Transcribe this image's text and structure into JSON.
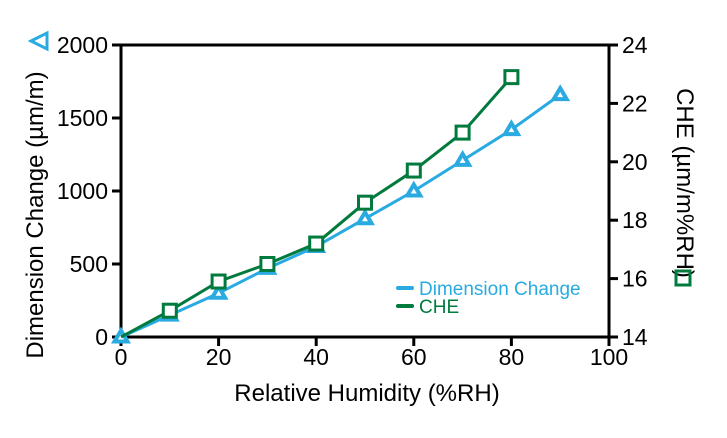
{
  "chart_data": {
    "type": "line",
    "title": "",
    "x_axis": {
      "label": "Relative Humidity (%RH)",
      "min": 0,
      "max": 100,
      "ticks": [
        0,
        20,
        40,
        60,
        80,
        100
      ]
    },
    "y_left": {
      "label": "Dimension Change (µm/m)",
      "min": 0,
      "max": 2000,
      "ticks": [
        0,
        500,
        1000,
        1500,
        2000
      ]
    },
    "y_right": {
      "label": "CHE (µm/m%RH)",
      "min": 14,
      "max": 24,
      "ticks": [
        14,
        16,
        18,
        20,
        22,
        24
      ]
    },
    "grid": "off",
    "frame": "full-box",
    "legend_position": "inside-bottom-right",
    "series": [
      {
        "name": "Dimension Change",
        "axis": "left",
        "color": "#29ABE2",
        "marker": "triangle",
        "skip_first_marker": false,
        "x": [
          0,
          10,
          20,
          30,
          40,
          50,
          60,
          70,
          80,
          90
        ],
        "values": [
          0,
          150,
          300,
          470,
          620,
          810,
          1000,
          1210,
          1420,
          1660
        ]
      },
      {
        "name": "CHE",
        "axis": "right",
        "color": "#007A3D",
        "marker": "square",
        "skip_first_marker": true,
        "x": [
          0,
          10,
          20,
          30,
          40,
          50,
          60,
          70,
          80
        ],
        "values": [
          14.0,
          14.9,
          15.9,
          16.5,
          17.2,
          18.6,
          19.7,
          21.0,
          22.9
        ]
      }
    ]
  },
  "icons": {
    "left_axis_marker": "open-triangle-icon",
    "right_axis_marker": "open-square-icon"
  },
  "colors": {
    "dimension_change": "#29ABE2",
    "che": "#007A3D",
    "axis": "#000000",
    "background": "#FFFFFF"
  }
}
